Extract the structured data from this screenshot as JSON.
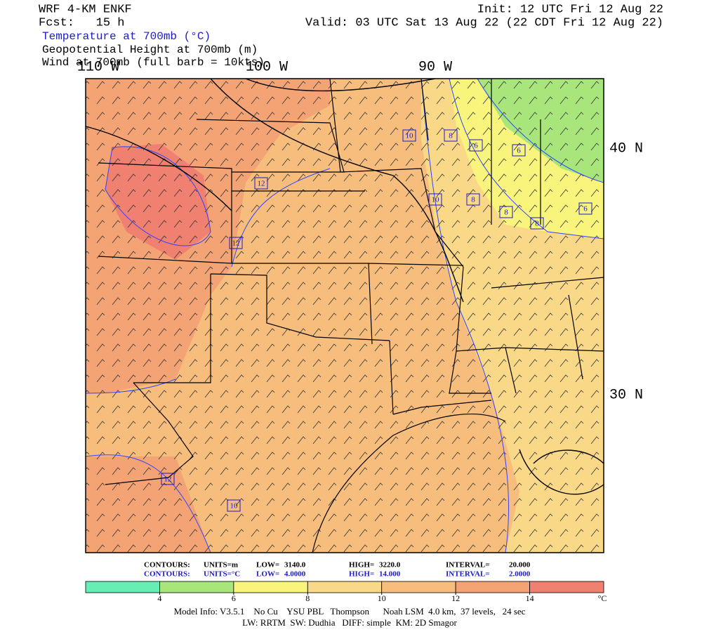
{
  "header": {
    "model": "WRF 4-KM ENKF",
    "forecast": "Fcst:   15 h",
    "init": "Init: 12 UTC Fri 12 Aug 22",
    "valid": "Valid: 03 UTC Sat 13 Aug 22 (22 CDT Fri 12 Aug 22)"
  },
  "fields": [
    "Temperature at 700mb (°C)",
    "Geopotential Height at 700mb (m)",
    "Wind at 700mb (full barb = 10kts)"
  ],
  "map": {
    "longitude_labels": [
      "110 W",
      "100 W",
      "90 W"
    ],
    "latitude_labels": [
      "40 N",
      "30 N"
    ],
    "contour_labels": [
      10,
      8,
      6,
      6,
      12,
      10,
      8,
      8,
      8,
      6,
      12,
      12,
      10
    ]
  },
  "contour_info": {
    "height": {
      "label": "CONTOURS:",
      "units": "UNITS=m",
      "low_label": "LOW=",
      "low": "3140.0",
      "high_label": "HIGH=",
      "high": "3220.0",
      "interval_label": "INTERVAL=",
      "interval": "20.000"
    },
    "temperature": {
      "label": "CONTOURS:",
      "units": "UNITS=°C",
      "low_label": "LOW=",
      "low": "4.0000",
      "high_label": "HIGH=",
      "high": "14.000",
      "interval_label": "INTERVAL=",
      "interval": "2.0000"
    }
  },
  "colorbar": {
    "colors": [
      "#66eeb4",
      "#a8e67c",
      "#f8f47c",
      "#f9d888",
      "#f7bd7c",
      "#f4a374",
      "#f08070"
    ],
    "ticks": [
      4,
      6,
      8,
      10,
      12,
      14
    ],
    "unit": "°C"
  },
  "footer": [
    "Model Info: V3.5.1    No Cu    YSU PBL   Thompson      Noah LSM  4.0 km,  37 levels,   24 sec",
    "LW: RRTM  SW: Dudhia   DIFF: simple  KM: 2D Smagor"
  ]
}
